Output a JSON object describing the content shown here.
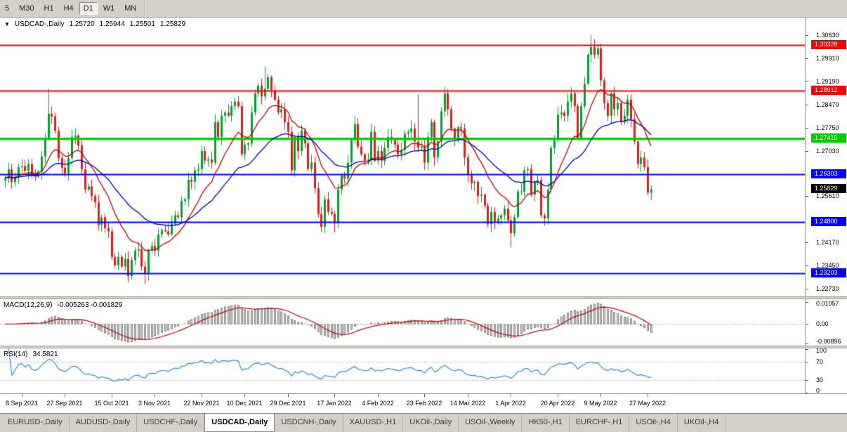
{
  "toolbar": {
    "buttons": [
      {
        "label": "5",
        "active": false
      },
      {
        "label": "M30",
        "active": false
      },
      {
        "label": "H1",
        "active": false
      },
      {
        "label": "H4",
        "active": false
      },
      {
        "label": "D1",
        "active": true
      },
      {
        "label": "W1",
        "active": false
      },
      {
        "label": "MN",
        "active": false
      }
    ]
  },
  "chart_header": {
    "marker": "▼",
    "title": "USDCAD-,Daily",
    "open": "1.25720",
    "high": "1.25944",
    "low": "1.25501",
    "close": "1.25829"
  },
  "palette": {
    "candle_up": "#00a22f",
    "candle_down": "#df1d1d",
    "macd_hist_fill": "#c6c6c6",
    "macd_hist_border": "#8e8e8e",
    "macd_signal": "#c40000",
    "rsi_line": "#2e8bd8",
    "indicator_level": "#b6b6b6"
  },
  "chart_data": {
    "type": "candlestick",
    "symbol": "USDCAD",
    "period": "Daily",
    "ylim": [
      1.2249,
      1.3118
    ],
    "closes": [
      1.2618,
      1.2645,
      1.2605,
      1.2622,
      1.2652,
      1.2655,
      1.264,
      1.2662,
      1.263,
      1.2622,
      1.2638,
      1.2685,
      1.274,
      1.2818,
      1.281,
      1.2765,
      1.268,
      1.265,
      1.2632,
      1.268,
      1.2745,
      1.275,
      1.272,
      1.2645,
      1.2582,
      1.2592,
      1.2562,
      1.2542,
      1.2472,
      1.2496,
      1.2462,
      1.2452,
      1.2372,
      1.2346,
      1.2372,
      1.2342,
      1.2366,
      1.2312,
      1.2362,
      1.2392,
      1.2396,
      1.2342,
      1.2322,
      1.2392,
      1.2406,
      1.2392,
      1.2442,
      1.2456,
      1.2452,
      1.2442,
      1.2476,
      1.2502,
      1.2496,
      1.2546,
      1.2552,
      1.2612,
      1.2606,
      1.2642,
      1.2646,
      1.2702,
      1.2672,
      1.2676,
      1.2666,
      1.2792,
      1.2746,
      1.2812,
      1.2822,
      1.2812,
      1.2842,
      1.2856,
      1.2842,
      1.2692,
      1.2722,
      1.2726,
      1.2822,
      1.2882,
      1.2906,
      1.2872,
      1.2896,
      1.2932,
      1.2892,
      1.2862,
      1.2822,
      1.2832,
      1.2792,
      1.2762,
      1.2642,
      1.2746,
      1.2702,
      1.2766,
      1.2726,
      1.2646,
      1.2666,
      1.2586,
      1.2506,
      1.2466,
      1.2552,
      1.2512,
      1.2506,
      1.2476,
      1.2582,
      1.2626,
      1.2616,
      1.2666,
      1.2736,
      1.2786,
      1.2716,
      1.2692,
      1.2672,
      1.2676,
      1.2762,
      1.2672,
      1.2702,
      1.2672,
      1.2712,
      1.2746,
      1.2736,
      1.2722,
      1.2692,
      1.2706,
      1.2756,
      1.2762,
      1.2772,
      1.2732,
      1.2712,
      1.2716,
      1.2666,
      1.2746,
      1.2792,
      1.2682,
      1.2732,
      1.2826,
      1.2882,
      1.2832,
      1.2772,
      1.2742,
      1.2776,
      1.2772,
      1.2682,
      1.263,
      1.2602,
      1.2606,
      1.2562,
      1.2566,
      1.2532,
      1.2474,
      1.2512,
      1.2482,
      1.2492,
      1.2502,
      1.2522,
      1.2486,
      1.2446,
      1.2496,
      1.2576,
      1.2576,
      1.2642,
      1.2646,
      1.2566,
      1.2606,
      1.2612,
      1.2502,
      1.2492,
      1.2582,
      1.2712,
      1.2736,
      1.2816,
      1.2822,
      1.2812,
      1.2856,
      1.2882,
      1.2842,
      1.2742,
      1.2842,
      1.2912,
      1.3002,
      1.3026,
      1.3002,
      1.3022,
      1.2922,
      1.2852,
      1.2812,
      1.2882,
      1.2832,
      1.2852,
      1.2792,
      1.2812,
      1.2862,
      1.2802,
      1.2732,
      1.2662,
      1.2682,
      1.2652,
      1.2572,
      1.25829
    ],
    "wick_overrides": {
      "13": {
        "h": 1.2896
      },
      "42": {
        "l": 1.2288
      },
      "78": {
        "h": 1.2965
      },
      "95": {
        "l": 1.245
      },
      "99": {
        "l": 1.2448
      },
      "124": {
        "h": 1.2878
      },
      "132": {
        "h": 1.2902
      },
      "152": {
        "l": 1.2402
      },
      "176": {
        "h": 1.3063
      },
      "178": {
        "h": 1.3036
      },
      "194": {
        "o": 1.2572,
        "h": 1.25944,
        "l": 1.25501,
        "c": 1.25829
      }
    },
    "y_ticks": [
      "1.30630",
      "1.29910",
      "1.29190",
      "1.28470",
      "1.27750",
      "1.27030",
      "1.25610",
      "1.24170",
      "1.23450",
      "1.22730"
    ],
    "levels": [
      {
        "price": 1.30328,
        "label": "1.30328",
        "color": "#ff0000",
        "width": 2
      },
      {
        "price": 1.28912,
        "label": "1.28912",
        "color": "#ff0000",
        "width": 2
      },
      {
        "price": 1.27415,
        "label": "1.27415",
        "color": "#00cc00",
        "width": 3
      },
      {
        "price": 1.26303,
        "label": "1.26303",
        "color": "#0000ff",
        "width": 2
      },
      {
        "price": 1.248,
        "label": "1.24800",
        "color": "#0000ff",
        "width": 2
      },
      {
        "price": 1.23203,
        "label": "1.23203",
        "color": "#0000ff",
        "width": 2
      }
    ],
    "current_price": {
      "price": 1.25829,
      "label": "1.25829",
      "bg": "#000000"
    },
    "moving_averages": [
      {
        "period": 13,
        "color": "#c40000"
      },
      {
        "period": 34,
        "color": "#0000b4"
      }
    ],
    "x_labels": [
      {
        "text": "8 Sep 2021",
        "bar": 5
      },
      {
        "text": "27 Sep 2021",
        "bar": 18
      },
      {
        "text": "15 Oct 2021",
        "bar": 32
      },
      {
        "text": "3 Nov 2021",
        "bar": 45
      },
      {
        "text": "22 Nov 2021",
        "bar": 59
      },
      {
        "text": "10 Dec 2021",
        "bar": 72
      },
      {
        "text": "29 Dec 2021",
        "bar": 85
      },
      {
        "text": "17 Jan 2022",
        "bar": 99
      },
      {
        "text": "4 Feb 2022",
        "bar": 112
      },
      {
        "text": "23 Feb 2022",
        "bar": 126
      },
      {
        "text": "14 Mar 2022",
        "bar": 139
      },
      {
        "text": "1 Apr 2022",
        "bar": 152
      },
      {
        "text": "20 Apr 2022",
        "bar": 166
      },
      {
        "text": "9 May 2022",
        "bar": 179
      },
      {
        "text": "27 May 2022",
        "bar": 193
      }
    ],
    "indicators": {
      "macd": {
        "label": "MACD(12,26,9)",
        "values_text": "-0.005263 -0.001829",
        "fast": 12,
        "slow": 26,
        "signal": 9,
        "range": [
          -0.0102,
          0.0118
        ],
        "scale": [
          {
            "text": "0.01057",
            "value": 0.01057
          },
          {
            "text": "0.00",
            "value": 0
          },
          {
            "text": "-0.00896",
            "value": -0.00896
          }
        ]
      },
      "rsi": {
        "label": "RSI(14)",
        "value_text": "34.5821",
        "period": 14,
        "levels": [
          70,
          30
        ],
        "scale": [
          {
            "text": "100",
            "value": 100
          },
          {
            "text": "70",
            "value": 70
          },
          {
            "text": "30",
            "value": 30
          },
          {
            "text": "0",
            "value": 0
          }
        ]
      }
    }
  },
  "tabs": {
    "items": [
      {
        "label": "EURUSD-,Daily",
        "active": false
      },
      {
        "label": "AUDUSD-,Daily",
        "active": false
      },
      {
        "label": "USDCHF-,Daily",
        "active": false
      },
      {
        "label": "USDCAD-,Daily",
        "active": true
      },
      {
        "label": "USDCNH-,Daily",
        "active": false
      },
      {
        "label": "XAUUSD-,H1",
        "active": false
      },
      {
        "label": "UKOil-,Daily",
        "active": false
      },
      {
        "label": "USOil-,Weekly",
        "active": false
      },
      {
        "label": "HK50-,H1",
        "active": false
      },
      {
        "label": "EURCHF-,H1",
        "active": false
      },
      {
        "label": "USOil-,H4",
        "active": false
      },
      {
        "label": "UKOil-,H4",
        "active": false
      }
    ]
  }
}
